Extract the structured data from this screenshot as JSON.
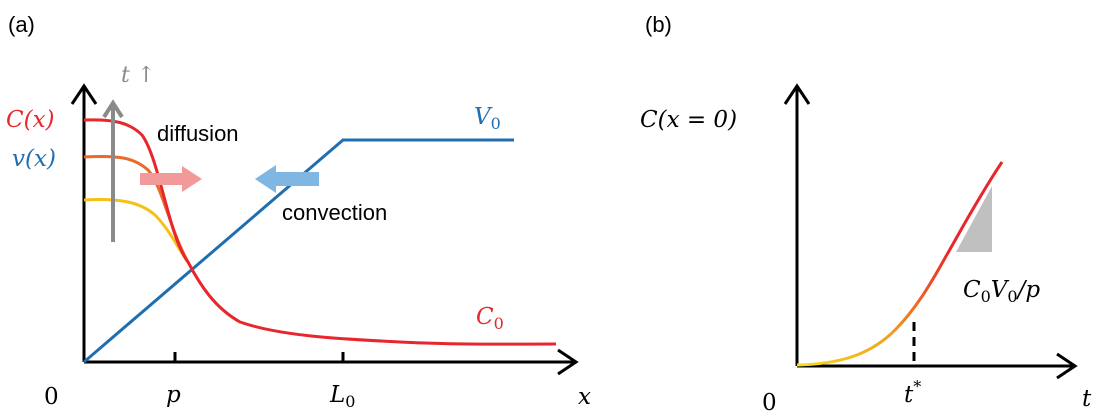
{
  "panel_a": {
    "panel_label": "(a)",
    "time_label": "t ↑",
    "c_label": "C(x)",
    "v_label": "v(x)",
    "diffusion_label": "diffusion",
    "convection_label": "convection",
    "v0_label": "V",
    "v0_sub": "0",
    "c0_label": "C",
    "c0_sub": "0",
    "origin_label": "0",
    "p_label": "p",
    "l0_label": "L",
    "l0_sub": "0",
    "x_label": "x"
  },
  "panel_b": {
    "panel_label": "(b)",
    "y_label": "C(x = 0)",
    "slope_C": "C",
    "slope_C_sub": "0",
    "slope_V": "V",
    "slope_V_sub": "0",
    "slope_rest": "/p",
    "origin_label": "0",
    "tstar_label": "t",
    "tstar_sup": "*",
    "t_label": "t"
  },
  "colors": {
    "concentration_latest": "#e8262b",
    "concentration_mid": "#ea6a2a",
    "concentration_early": "#f5c018",
    "velocity": "#1f6fb0",
    "time_arrow": "#8a8a8a",
    "diffusion_arrow": "#f29a9a",
    "convection_arrow": "#7fb6e2",
    "slope_triangle": "#c0c0c0",
    "axes": "#000000"
  }
}
